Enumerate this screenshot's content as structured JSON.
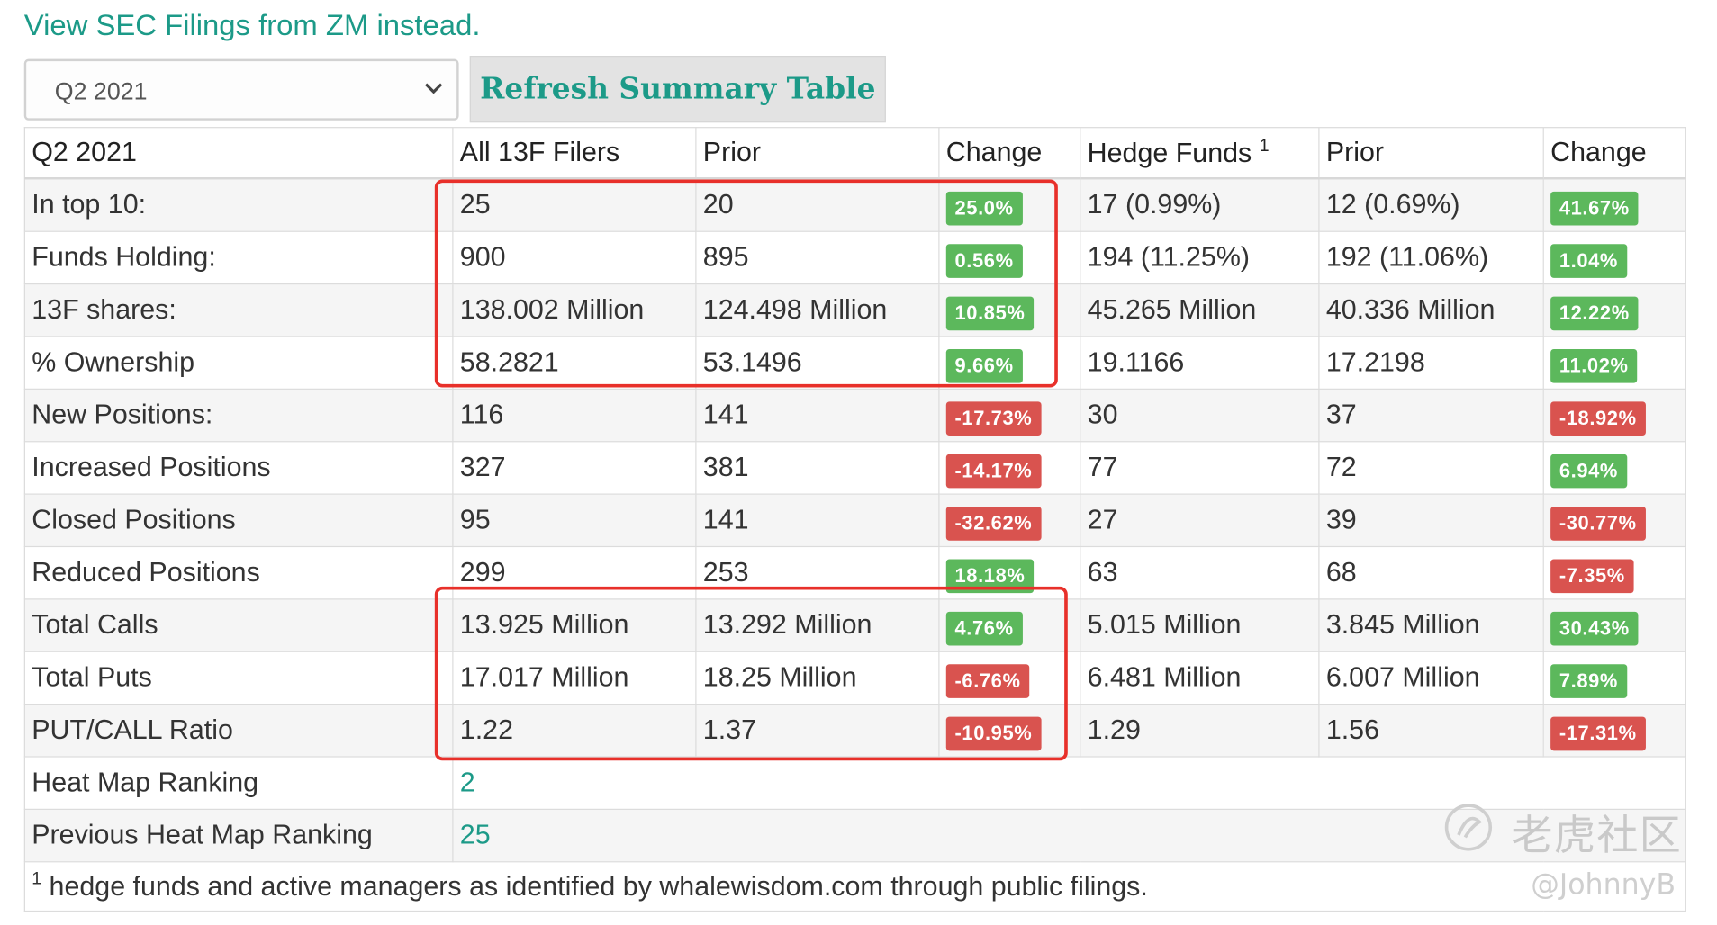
{
  "sec_link": "View SEC Filings from ZM instead.",
  "quarter_select": {
    "value": "Q2 2021"
  },
  "refresh_button": "Refresh Summary Table",
  "table": {
    "headers": {
      "quarter": "Q2 2021",
      "all_filers": "All 13F Filers",
      "prior_1": "Prior",
      "change_1": "Change",
      "hedge_funds": "Hedge Funds",
      "hedge_funds_sup": "1",
      "prior_2": "Prior",
      "change_2": "Change"
    },
    "rows": [
      {
        "label": "In top 10:",
        "all": "25",
        "prior": "20",
        "change": "25.0%",
        "change_dir": "up",
        "hf": "17 (0.99%)",
        "hf_prior": "12 (0.69%)",
        "hf_change": "41.67%",
        "hf_change_dir": "up"
      },
      {
        "label": "Funds Holding:",
        "all": "900",
        "prior": "895",
        "change": "0.56%",
        "change_dir": "up",
        "hf": "194 (11.25%)",
        "hf_prior": "192 (11.06%)",
        "hf_change": "1.04%",
        "hf_change_dir": "up"
      },
      {
        "label": "13F shares:",
        "all": "138.002 Million",
        "prior": "124.498 Million",
        "change": "10.85%",
        "change_dir": "up",
        "hf": "45.265 Million",
        "hf_prior": "40.336 Million",
        "hf_change": "12.22%",
        "hf_change_dir": "up"
      },
      {
        "label": "% Ownership",
        "all": "58.2821",
        "prior": "53.1496",
        "change": "9.66%",
        "change_dir": "up",
        "hf": "19.1166",
        "hf_prior": "17.2198",
        "hf_change": "11.02%",
        "hf_change_dir": "up"
      },
      {
        "label": "New Positions:",
        "all": "116",
        "prior": "141",
        "change": "-17.73%",
        "change_dir": "down",
        "hf": "30",
        "hf_prior": "37",
        "hf_change": "-18.92%",
        "hf_change_dir": "down"
      },
      {
        "label": "Increased Positions",
        "all": "327",
        "prior": "381",
        "change": "-14.17%",
        "change_dir": "down",
        "hf": "77",
        "hf_prior": "72",
        "hf_change": "6.94%",
        "hf_change_dir": "up"
      },
      {
        "label": "Closed Positions",
        "all": "95",
        "prior": "141",
        "change": "-32.62%",
        "change_dir": "down",
        "hf": "27",
        "hf_prior": "39",
        "hf_change": "-30.77%",
        "hf_change_dir": "down"
      },
      {
        "label": "Reduced Positions",
        "all": "299",
        "prior": "253",
        "change": "18.18%",
        "change_dir": "up",
        "hf": "63",
        "hf_prior": "68",
        "hf_change": "-7.35%",
        "hf_change_dir": "down"
      },
      {
        "label": "Total Calls",
        "all": "13.925 Million",
        "prior": "13.292 Million",
        "change": "4.76%",
        "change_dir": "up",
        "hf": "5.015 Million",
        "hf_prior": "3.845 Million",
        "hf_change": "30.43%",
        "hf_change_dir": "up"
      },
      {
        "label": "Total Puts",
        "all": "17.017 Million",
        "prior": "18.25 Million",
        "change": "-6.76%",
        "change_dir": "down",
        "hf": "6.481 Million",
        "hf_prior": "6.007 Million",
        "hf_change": "7.89%",
        "hf_change_dir": "up"
      },
      {
        "label": "PUT/CALL Ratio",
        "all": "1.22",
        "prior": "1.37",
        "change": "-10.95%",
        "change_dir": "down",
        "hf": "1.29",
        "hf_prior": "1.56",
        "hf_change": "-17.31%",
        "hf_change_dir": "down"
      }
    ],
    "heat_map_ranking": {
      "label": "Heat Map Ranking",
      "value": "2"
    },
    "previous_heat_map_ranking": {
      "label": "Previous Heat Map Ranking",
      "value": "25"
    },
    "footnote": {
      "marker": "1",
      "text": " hedge funds and active managers as identified by whalewisdom.com through public filings."
    }
  },
  "colors": {
    "accent": "#1c9a88",
    "positive": "#5cb85c",
    "negative": "#d9534f",
    "highlight_box": "#e8302a"
  },
  "watermark": {
    "text": "老虎社区",
    "user": "@JohnnyB"
  }
}
